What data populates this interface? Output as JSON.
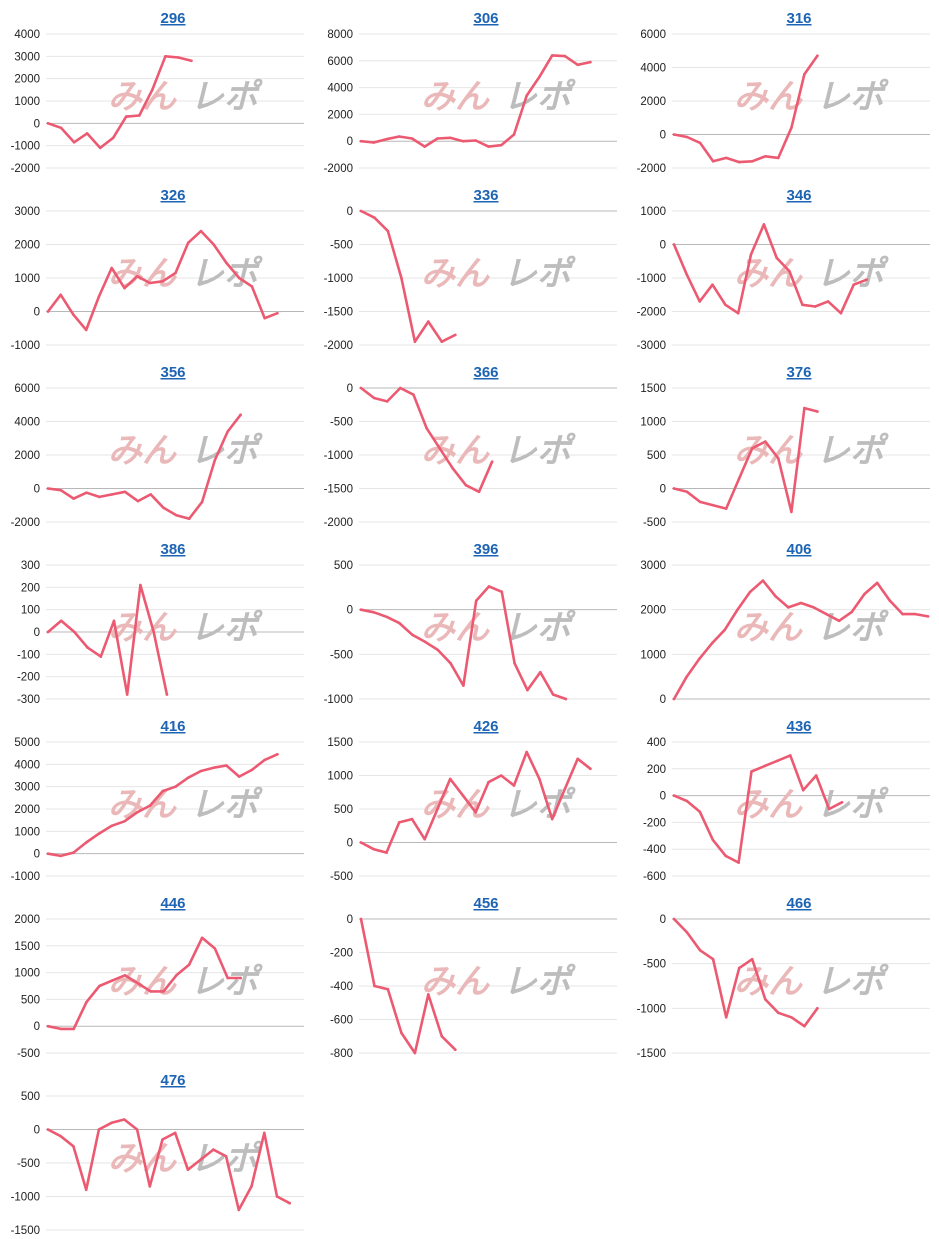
{
  "watermark": {
    "part1": "みん",
    "part2": "レポ"
  },
  "colors": {
    "line": "#ec5a72",
    "title": "#1d64b4"
  },
  "chart_data": [
    {
      "type": "line",
      "title": "296",
      "ylim": [
        -2000,
        4000
      ],
      "yticks": [
        -2000,
        -1000,
        0,
        1000,
        2000,
        3000,
        4000
      ],
      "values": [
        0,
        -200,
        -850,
        -450,
        -1100,
        -650,
        300,
        350,
        1500,
        3000,
        2950,
        2800
      ]
    },
    {
      "type": "line",
      "title": "306",
      "ylim": [
        -2000,
        8000
      ],
      "yticks": [
        -2000,
        0,
        2000,
        4000,
        6000,
        8000
      ],
      "values": [
        0,
        -100,
        150,
        350,
        200,
        -400,
        200,
        250,
        0,
        50,
        -400,
        -300,
        500,
        3400,
        4800,
        6400,
        6350,
        5700,
        5900
      ]
    },
    {
      "type": "line",
      "title": "316",
      "ylim": [
        -2000,
        6000
      ],
      "yticks": [
        -2000,
        0,
        2000,
        4000,
        6000
      ],
      "values": [
        0,
        -150,
        -500,
        -1600,
        -1400,
        -1650,
        -1600,
        -1300,
        -1400,
        400,
        3600,
        4700
      ]
    },
    {
      "type": "line",
      "title": "326",
      "ylim": [
        -1000,
        3000
      ],
      "yticks": [
        -1000,
        0,
        1000,
        2000,
        3000
      ],
      "values": [
        0,
        500,
        -100,
        -550,
        450,
        1300,
        700,
        1050,
        850,
        900,
        1150,
        2050,
        2400,
        2000,
        1450,
        1000,
        750,
        -200,
        -50
      ]
    },
    {
      "type": "line",
      "title": "336",
      "ylim": [
        -2000,
        0
      ],
      "yticks": [
        -2000,
        -1500,
        -1000,
        -500,
        0
      ],
      "values": [
        0,
        -100,
        -300,
        -1000,
        -1950,
        -1650,
        -1950,
        -1850
      ]
    },
    {
      "type": "line",
      "title": "346",
      "ylim": [
        -3000,
        1000
      ],
      "yticks": [
        -3000,
        -2000,
        -1000,
        0,
        1000
      ],
      "values": [
        0,
        -900,
        -1700,
        -1200,
        -1800,
        -2050,
        -300,
        600,
        -400,
        -800,
        -1800,
        -1850,
        -1700,
        -2050,
        -1200,
        -1050
      ]
    },
    {
      "type": "line",
      "title": "356",
      "ylim": [
        -2000,
        6000
      ],
      "yticks": [
        -2000,
        0,
        2000,
        4000,
        6000
      ],
      "values": [
        0,
        -100,
        -600,
        -250,
        -500,
        -350,
        -200,
        -750,
        -350,
        -1150,
        -1600,
        -1800,
        -800,
        1700,
        3400,
        4400
      ]
    },
    {
      "type": "line",
      "title": "366",
      "ylim": [
        -2000,
        0
      ],
      "yticks": [
        -2000,
        -1500,
        -1000,
        -500,
        0
      ],
      "values": [
        0,
        -150,
        -200,
        0,
        -100,
        -600,
        -900,
        -1200,
        -1450,
        -1550,
        -1100
      ]
    },
    {
      "type": "line",
      "title": "376",
      "ylim": [
        -500,
        1500
      ],
      "yticks": [
        -500,
        0,
        500,
        1000,
        1500
      ],
      "values": [
        0,
        -50,
        -200,
        -250,
        -300,
        150,
        600,
        700,
        450,
        -350,
        1200,
        1150
      ]
    },
    {
      "type": "line",
      "title": "386",
      "ylim": [
        -300,
        300
      ],
      "yticks": [
        -300,
        -200,
        -100,
        0,
        100,
        200,
        300
      ],
      "values": [
        0,
        50,
        0,
        -70,
        -110,
        50,
        -280,
        210,
        0,
        -280
      ]
    },
    {
      "type": "line",
      "title": "396",
      "ylim": [
        -1000,
        500
      ],
      "yticks": [
        -1000,
        -500,
        0,
        500
      ],
      "values": [
        0,
        -30,
        -80,
        -150,
        -280,
        -360,
        -450,
        -600,
        -850,
        100,
        260,
        200,
        -600,
        -900,
        -700,
        -950,
        -1000
      ]
    },
    {
      "type": "line",
      "title": "406",
      "ylim": [
        0,
        3000
      ],
      "yticks": [
        0,
        1000,
        2000,
        3000
      ],
      "values": [
        0,
        500,
        900,
        1250,
        1550,
        2000,
        2400,
        2650,
        2300,
        2050,
        2150,
        2050,
        1900,
        1750,
        1950,
        2350,
        2600,
        2200,
        1900,
        1900,
        1850
      ]
    },
    {
      "type": "line",
      "title": "416",
      "ylim": [
        -1000,
        5000
      ],
      "yticks": [
        -1000,
        0,
        1000,
        2000,
        3000,
        4000,
        5000
      ],
      "values": [
        0,
        -100,
        50,
        500,
        900,
        1250,
        1450,
        1850,
        2150,
        2800,
        3000,
        3400,
        3700,
        3850,
        3950,
        3450,
        3750,
        4200,
        4450
      ]
    },
    {
      "type": "line",
      "title": "426",
      "ylim": [
        -500,
        1500
      ],
      "yticks": [
        -500,
        0,
        500,
        1000,
        1500
      ],
      "values": [
        0,
        -100,
        -150,
        300,
        350,
        50,
        500,
        950,
        700,
        450,
        900,
        1000,
        850,
        1350,
        950,
        350,
        800,
        1250,
        1100
      ]
    },
    {
      "type": "line",
      "title": "436",
      "ylim": [
        -600,
        400
      ],
      "yticks": [
        -600,
        -400,
        -200,
        0,
        200,
        400
      ],
      "values": [
        0,
        -40,
        -120,
        -330,
        -450,
        -500,
        180,
        220,
        260,
        300,
        40,
        150,
        -100,
        -50
      ]
    },
    {
      "type": "line",
      "title": "446",
      "ylim": [
        -500,
        2000
      ],
      "yticks": [
        -500,
        0,
        500,
        1000,
        1500,
        2000
      ],
      "values": [
        0,
        -50,
        -50,
        450,
        750,
        850,
        950,
        800,
        650,
        650,
        950,
        1150,
        1650,
        1450,
        900,
        900
      ]
    },
    {
      "type": "line",
      "title": "456",
      "ylim": [
        -800,
        0
      ],
      "yticks": [
        -800,
        -600,
        -400,
        -200,
        0
      ],
      "values": [
        0,
        -400,
        -420,
        -680,
        -800,
        -450,
        -700,
        -780
      ]
    },
    {
      "type": "line",
      "title": "466",
      "ylim": [
        -1500,
        0
      ],
      "yticks": [
        -1500,
        -1000,
        -500,
        0
      ],
      "values": [
        0,
        -150,
        -350,
        -450,
        -1100,
        -550,
        -450,
        -900,
        -1050,
        -1100,
        -1200,
        -1000
      ]
    },
    {
      "type": "line",
      "title": "476",
      "ylim": [
        -1500,
        500
      ],
      "yticks": [
        -1500,
        -1000,
        -500,
        0,
        500
      ],
      "values": [
        0,
        -100,
        -250,
        -900,
        0,
        100,
        150,
        0,
        -850,
        -150,
        -50,
        -600,
        -450,
        -300,
        -400,
        -1200,
        -850,
        -50,
        -1000,
        -1100
      ]
    }
  ]
}
